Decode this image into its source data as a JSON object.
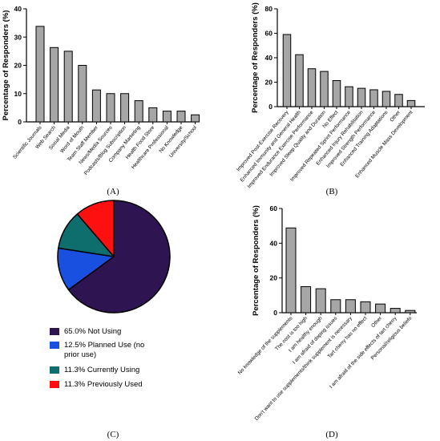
{
  "colors": {
    "bar": "#a6a6a6",
    "axis": "#000000",
    "pie_not_using": "#2e1450",
    "pie_planned": "#1a50e0",
    "pie_currently": "#0e6e6e",
    "pie_previously": "#ff1010"
  },
  "chart_data": [
    {
      "panel": "(A)",
      "type": "bar",
      "ylabel": "Percentage of Responders (%)",
      "ylim": [
        0,
        40
      ],
      "yticks": [
        0,
        10,
        20,
        30,
        40
      ],
      "categories": [
        "Scientific Journals",
        "Web Search",
        "Social Media",
        "Word of Mouth",
        "Team Staff Member",
        "News/Media Sources",
        "Podcasts/Blog Subscription",
        "Company Marketing",
        "Health Food Store",
        "Healthcare Professional",
        "No Knowledge",
        "University/School"
      ],
      "values": [
        33.8,
        26.3,
        25.0,
        20.0,
        11.3,
        10.0,
        10.0,
        7.5,
        5.0,
        3.8,
        3.8,
        2.5
      ]
    },
    {
      "panel": "(B)",
      "type": "bar",
      "ylabel": "Percentage of Responders (%)",
      "ylim": [
        0,
        80
      ],
      "yticks": [
        0,
        20,
        40,
        60,
        80
      ],
      "categories": [
        "Improved Post-Exercise Recovery",
        "Enhanced Immunity and General Health",
        "Improved Endurance Exercise Performance",
        "Improved Sleep Quality and Duration",
        "No Effect",
        "Improved Repeated Sprint Performance",
        "Enhanced Injury Rehabilitation",
        "Improved Strength Performance",
        "Enhanced Training Adaptations",
        "Other",
        "Enhanced Muscle Mass Development"
      ],
      "values": [
        59,
        42.5,
        31,
        28.8,
        21.3,
        16.3,
        15,
        13.8,
        12.5,
        10,
        5
      ]
    },
    {
      "panel": "(C)",
      "type": "pie",
      "labels": [
        "65.0% Not Using",
        "12.5% Planned Use (no prior use)",
        "11.3% Currently Using",
        "11.3% Previously Used"
      ],
      "values": [
        65.0,
        12.5,
        11.3,
        11.3
      ]
    },
    {
      "panel": "(D)",
      "type": "bar",
      "ylabel": "Percentage of Responders (%)",
      "ylim": [
        0,
        60
      ],
      "yticks": [
        0,
        20,
        40,
        60
      ],
      "categories": [
        "No knowledge of the supplements",
        "The cost is too high",
        "I am healthy enough",
        "I am afraid of doping issues",
        "Don't want to use supplements/think supplement is necessary",
        "Tart cherry has no effect",
        "Other",
        "I am afraid of the side effects of tart cherry",
        "Personal/religious beliefs"
      ],
      "values": [
        48.8,
        15,
        13.8,
        7.5,
        7.5,
        6.3,
        5,
        2.5,
        1.3
      ]
    }
  ]
}
